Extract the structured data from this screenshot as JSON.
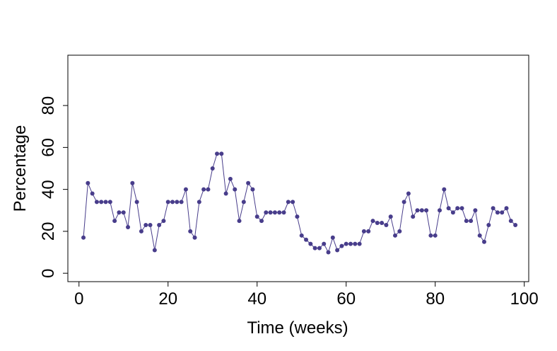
{
  "chart_data": {
    "type": "line",
    "title": "",
    "xlabel": "Time (weeks)",
    "ylabel": "Percentage",
    "xlim": [
      -2.5,
      101
    ],
    "ylim": [
      -4,
      104
    ],
    "xticks": [
      0,
      20,
      40,
      60,
      80,
      100
    ],
    "yticks": [
      0,
      20,
      40,
      60,
      80
    ],
    "grid": false,
    "legend": "none",
    "color": "#483d8b",
    "series": [
      {
        "x": [
          1,
          2,
          3,
          4,
          5,
          6,
          7,
          8,
          9,
          10,
          11,
          12,
          13,
          14,
          15,
          16,
          17,
          18,
          19,
          20,
          21,
          22,
          23,
          24,
          25,
          26,
          27,
          28,
          29,
          30,
          31,
          32,
          33,
          34,
          35,
          36,
          37,
          38,
          39,
          40,
          41,
          42,
          43,
          44,
          45,
          46,
          47,
          48,
          49,
          50,
          51,
          52,
          53,
          54,
          55,
          56,
          57,
          58,
          59,
          60,
          61,
          62,
          63,
          64,
          65,
          66,
          67,
          68,
          69,
          70,
          71,
          72,
          73,
          74,
          75,
          76,
          77,
          78,
          79,
          80,
          81,
          82,
          83,
          84,
          85,
          86,
          87,
          88,
          89,
          90,
          91,
          92,
          93,
          94,
          95,
          96,
          97,
          98
        ],
        "y": [
          17,
          43,
          38,
          34,
          34,
          34,
          34,
          25,
          29,
          29,
          22,
          43,
          34,
          20,
          23,
          23,
          11,
          23,
          25,
          34,
          34,
          34,
          34,
          40,
          20,
          17,
          34,
          40,
          40,
          50,
          57,
          57,
          38,
          45,
          40,
          25,
          34,
          43,
          40,
          27,
          25,
          29,
          29,
          29,
          29,
          29,
          34,
          34,
          27,
          18,
          16,
          14,
          12,
          12,
          14,
          10,
          17,
          11,
          13,
          14,
          14,
          14,
          14,
          20,
          20,
          25,
          24,
          24,
          23,
          27,
          18,
          20,
          34,
          38,
          27,
          30,
          30,
          30,
          18,
          18,
          30,
          40,
          31,
          29,
          31,
          31,
          25,
          25,
          30,
          18,
          15,
          23,
          31,
          29,
          29,
          31,
          25,
          23
        ]
      }
    ]
  }
}
